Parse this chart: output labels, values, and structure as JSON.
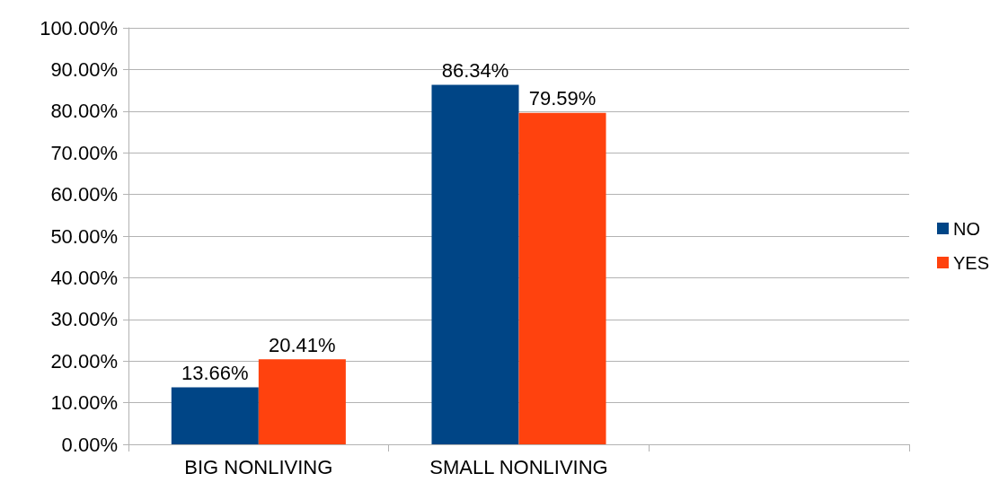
{
  "chart_data": {
    "type": "bar",
    "categories": [
      "BIG NONLIVING",
      "SMALL NONLIVING",
      null
    ],
    "series": [
      {
        "name": "NO",
        "color": "#004586",
        "values": [
          13.66,
          86.34,
          null
        ],
        "value_labels": [
          "13.66%",
          "86.34%",
          null
        ]
      },
      {
        "name": "YES",
        "color": "#ff420e",
        "values": [
          20.41,
          79.59,
          null
        ],
        "value_labels": [
          "20.41%",
          "79.59%",
          null
        ]
      }
    ],
    "ylim": [
      0,
      100
    ],
    "yticks": [
      {
        "value": 0,
        "label": "0.00%"
      },
      {
        "value": 10,
        "label": "10.00%"
      },
      {
        "value": 20,
        "label": "20.00%"
      },
      {
        "value": 30,
        "label": "30.00%"
      },
      {
        "value": 40,
        "label": "40.00%"
      },
      {
        "value": 50,
        "label": "50.00%"
      },
      {
        "value": 60,
        "label": "60.00%"
      },
      {
        "value": 70,
        "label": "70.00%"
      },
      {
        "value": 80,
        "label": "80.00%"
      },
      {
        "value": 90,
        "label": "90.00%"
      },
      {
        "value": 100,
        "label": "100.00%"
      }
    ],
    "grid": "y",
    "legend": "right"
  }
}
